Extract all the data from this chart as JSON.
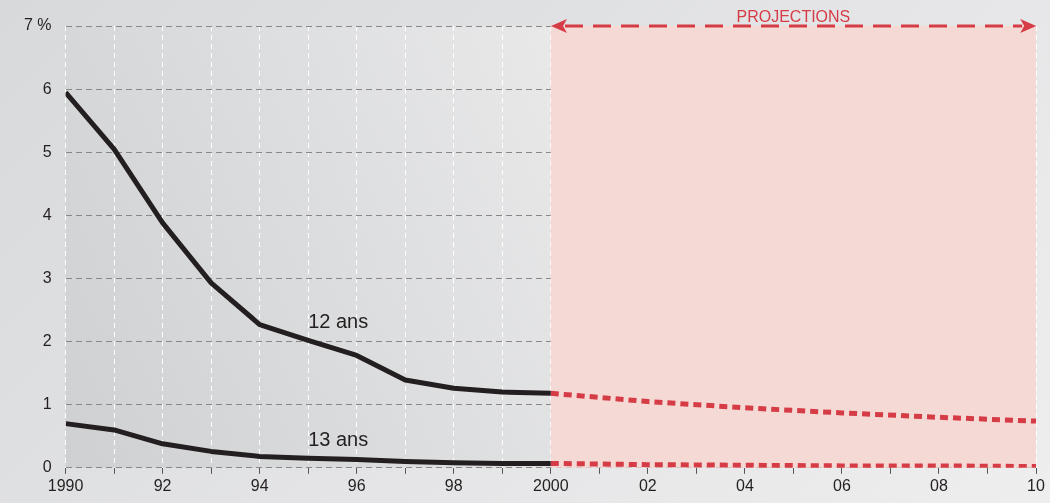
{
  "chart_data": {
    "type": "line",
    "xlim": [
      1990,
      2010
    ],
    "xticks": [
      {
        "value": 1990,
        "label": "1990"
      },
      {
        "value": 1991,
        "label": null
      },
      {
        "value": 1992,
        "label": "92"
      },
      {
        "value": 1993,
        "label": null
      },
      {
        "value": 1994,
        "label": "94"
      },
      {
        "value": 1995,
        "label": null
      },
      {
        "value": 1996,
        "label": "96"
      },
      {
        "value": 1997,
        "label": null
      },
      {
        "value": 1998,
        "label": "98"
      },
      {
        "value": 1999,
        "label": null
      },
      {
        "value": 2000,
        "label": "2000"
      },
      {
        "value": 2001,
        "label": null
      },
      {
        "value": 2002,
        "label": "02"
      },
      {
        "value": 2003,
        "label": null
      },
      {
        "value": 2004,
        "label": "04"
      },
      {
        "value": 2005,
        "label": null
      },
      {
        "value": 2006,
        "label": "06"
      },
      {
        "value": 2007,
        "label": null
      },
      {
        "value": 2008,
        "label": "08"
      },
      {
        "value": 2009,
        "label": null
      },
      {
        "value": 2010,
        "label": "10"
      }
    ],
    "ylim": [
      0,
      7
    ],
    "yticks": [
      0,
      1,
      2,
      3,
      4,
      5,
      6,
      {
        "value": 7,
        "label": "7 %"
      }
    ],
    "grid": true,
    "legend": false,
    "marker": "none",
    "series": [
      {
        "name": "12 ans",
        "color": "#231f20",
        "line_style": "solid",
        "x": [
          1990,
          1991,
          1992,
          1993,
          1994,
          1995,
          1996,
          1997,
          1998,
          1999,
          2000
        ],
        "values": [
          5.95,
          5.05,
          3.88,
          2.93,
          2.27,
          2.02,
          1.78,
          1.39,
          1.26,
          1.2,
          1.18
        ]
      },
      {
        "name": "13 ans",
        "color": "#231f20",
        "line_style": "solid",
        "x": [
          1990,
          1991,
          1992,
          1993,
          1994,
          1995,
          1996,
          1997,
          1998,
          1999,
          2000
        ],
        "values": [
          0.7,
          0.6,
          0.38,
          0.26,
          0.18,
          0.15,
          0.13,
          0.1,
          0.08,
          0.07,
          0.07
        ]
      },
      {
        "color": "#d63c46",
        "line_style": "dashed",
        "x": [
          2000,
          2002,
          2004,
          2006,
          2008,
          2010
        ],
        "values": [
          1.18,
          1.05,
          0.95,
          0.87,
          0.8,
          0.74
        ]
      },
      {
        "color": "#d63c46",
        "line_style": "dashed",
        "x": [
          2000,
          2002,
          2004,
          2006,
          2008,
          2010
        ],
        "values": [
          0.07,
          0.05,
          0.04,
          0.03,
          0.03,
          0.02
        ]
      }
    ],
    "bands": [
      {
        "axis": "x",
        "from": 2000,
        "to": 2010,
        "label": "PROJECTIONS",
        "color": "#f5d9d5"
      }
    ]
  }
}
